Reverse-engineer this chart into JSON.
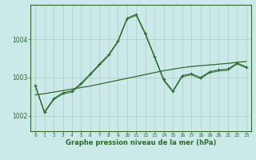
{
  "title": "Graphe pression niveau de la mer (hPa)",
  "background_color": "#cce9e9",
  "grid_color": "#b0c8c8",
  "line_color": "#2d6a2d",
  "xlim": [
    -0.5,
    23.5
  ],
  "ylim": [
    1001.6,
    1004.9
  ],
  "yticks": [
    1002,
    1003,
    1004
  ],
  "xticks": [
    0,
    1,
    2,
    3,
    4,
    5,
    6,
    7,
    8,
    9,
    10,
    11,
    12,
    13,
    14,
    15,
    16,
    17,
    18,
    19,
    20,
    21,
    22,
    23
  ],
  "hours": [
    0,
    1,
    2,
    3,
    4,
    5,
    6,
    7,
    8,
    9,
    10,
    11,
    12,
    13,
    14,
    15,
    16,
    17,
    18,
    19,
    20,
    21,
    22,
    23
  ],
  "pressure_main": [
    1002.8,
    1002.1,
    1002.45,
    1002.6,
    1002.65,
    1002.85,
    1003.1,
    1003.35,
    1003.6,
    1003.95,
    1004.55,
    1004.65,
    1004.15,
    1003.55,
    1002.95,
    1002.65,
    1003.05,
    1003.1,
    1003.0,
    1003.15,
    1003.2,
    1003.22,
    1003.38,
    1003.28
  ],
  "pressure_trend": [
    1002.55,
    1002.58,
    1002.62,
    1002.66,
    1002.7,
    1002.74,
    1002.78,
    1002.83,
    1002.88,
    1002.93,
    1002.98,
    1003.03,
    1003.08,
    1003.13,
    1003.18,
    1003.22,
    1003.26,
    1003.29,
    1003.31,
    1003.33,
    1003.35,
    1003.37,
    1003.4,
    1003.42
  ]
}
